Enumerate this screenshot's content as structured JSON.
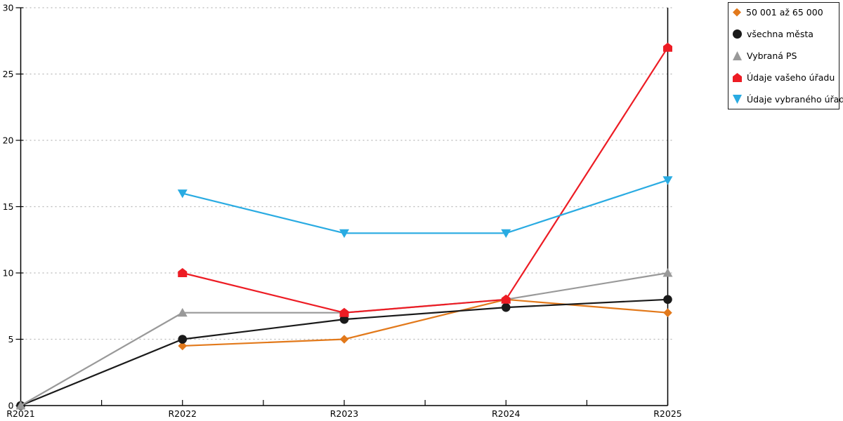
{
  "chart_data": {
    "type": "line",
    "title": "",
    "xlabel": "",
    "ylabel": "",
    "categories": [
      "R2021",
      "R2022",
      "R2023",
      "R2024",
      "R2025"
    ],
    "ylim": [
      0,
      30
    ],
    "ytick_step": 5,
    "yticks": [
      0,
      5,
      10,
      15,
      20,
      25,
      30
    ],
    "grid": "horizontal dotted gridlines at every 5 units",
    "legend_position": "outside top-right, bordered box",
    "axis_color": "#000000",
    "gridline_color": "#b8b8b8",
    "series": [
      {
        "name": "50 001 až 65 000",
        "color": "#E2791B",
        "marker": "diamond",
        "values": [
          null,
          4.5,
          5,
          8,
          7
        ]
      },
      {
        "name": "všechna města",
        "color": "#1a1a1a",
        "marker": "circle",
        "values": [
          0,
          5,
          6.5,
          7.4,
          8
        ]
      },
      {
        "name": "Vybraná PS",
        "color": "#999999",
        "marker": "triangle-up",
        "values": [
          0,
          7,
          7,
          8,
          10
        ]
      },
      {
        "name": "Údaje vašeho úřadu",
        "color": "#ED1C24",
        "marker": "pentagon",
        "values": [
          null,
          10,
          7,
          8,
          27
        ]
      },
      {
        "name": "Údaje vybraného úřadu",
        "color": "#29ABE2",
        "marker": "triangle-down",
        "values": [
          null,
          16,
          13,
          13,
          17
        ]
      }
    ]
  }
}
